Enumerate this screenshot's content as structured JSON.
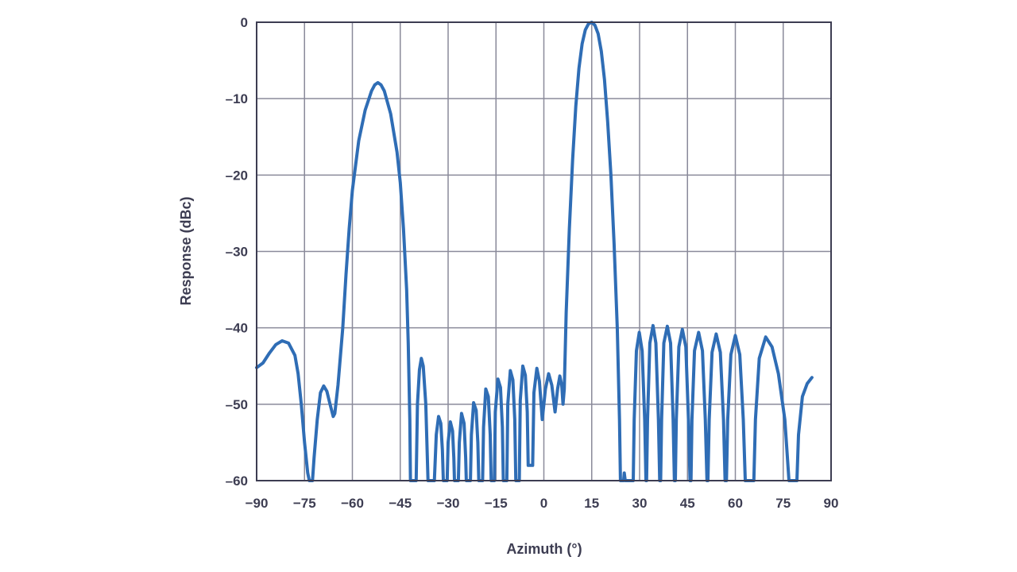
{
  "chart_data": {
    "type": "line",
    "title": "",
    "xlabel": "Azimuth (°)",
    "ylabel": "Response (dBc)",
    "xlim": [
      -90,
      90
    ],
    "ylim": [
      -60,
      0
    ],
    "grid": true,
    "x_ticks": [
      -90,
      -75,
      -60,
      -45,
      -30,
      -15,
      0,
      15,
      30,
      45,
      60,
      75,
      90
    ],
    "x_tick_labels": [
      "−90",
      "−75",
      "−60",
      "−45",
      "−30",
      "−15",
      "0",
      "15",
      "30",
      "45",
      "60",
      "75",
      "90"
    ],
    "y_ticks": [
      0,
      -10,
      -20,
      -30,
      -40,
      -50,
      -60
    ],
    "y_tick_labels": [
      "0",
      "–10",
      "–20",
      "–30",
      "–40",
      "–50",
      "–60"
    ],
    "line_color": "#2f6db5",
    "grid_color": "#8a8a9a",
    "series": [
      {
        "values": [
          [
            -90,
            -45.2
          ],
          [
            -88,
            -44.6
          ],
          [
            -86,
            -43.3
          ],
          [
            -84,
            -42.2
          ],
          [
            -82,
            -41.7
          ],
          [
            -80,
            -42.0
          ],
          [
            -78,
            -43.6
          ],
          [
            -77,
            -46.0
          ],
          [
            -76,
            -50.0
          ],
          [
            -75,
            -55.0
          ],
          [
            -74,
            -59.0
          ],
          [
            -73.5,
            -60
          ],
          [
            -72.5,
            -60
          ],
          [
            -72,
            -57.0
          ],
          [
            -71,
            -52.0
          ],
          [
            -70,
            -48.5
          ],
          [
            -69,
            -47.6
          ],
          [
            -68,
            -48.3
          ],
          [
            -67,
            -50.0
          ],
          [
            -66,
            -51.6
          ],
          [
            -65.5,
            -51.2
          ],
          [
            -64.5,
            -47.5
          ],
          [
            -63,
            -40.0
          ],
          [
            -62,
            -33.0
          ],
          [
            -61,
            -27.0
          ],
          [
            -60,
            -22.0
          ],
          [
            -58,
            -15.5
          ],
          [
            -56,
            -11.5
          ],
          [
            -54,
            -9.0
          ],
          [
            -53,
            -8.2
          ],
          [
            -52,
            -7.9
          ],
          [
            -51,
            -8.2
          ],
          [
            -50,
            -9.0
          ],
          [
            -48,
            -12.0
          ],
          [
            -46,
            -17.0
          ],
          [
            -45,
            -21.0
          ],
          [
            -44,
            -27.0
          ],
          [
            -43,
            -35.0
          ],
          [
            -42.5,
            -42.0
          ],
          [
            -42,
            -52.0
          ],
          [
            -41.8,
            -60
          ],
          [
            -40,
            -60
          ],
          [
            -39.6,
            -50.0
          ],
          [
            -39,
            -45.5
          ],
          [
            -38.4,
            -44.0
          ],
          [
            -37.8,
            -45.0
          ],
          [
            -37,
            -50.0
          ],
          [
            -36.3,
            -60
          ],
          [
            -34.3,
            -60
          ],
          [
            -33.7,
            -54.0
          ],
          [
            -33,
            -51.6
          ],
          [
            -32.3,
            -52.5
          ],
          [
            -31.8,
            -56.0
          ],
          [
            -31.5,
            -60
          ],
          [
            -30.3,
            -60
          ],
          [
            -30,
            -55.0
          ],
          [
            -29.3,
            -52.3
          ],
          [
            -28.6,
            -53.5
          ],
          [
            -28.2,
            -57.0
          ],
          [
            -28,
            -60
          ],
          [
            -26.8,
            -60
          ],
          [
            -26.5,
            -55.0
          ],
          [
            -25.8,
            -51.2
          ],
          [
            -25,
            -52.5
          ],
          [
            -24.5,
            -57.0
          ],
          [
            -24.3,
            -60
          ],
          [
            -23,
            -60
          ],
          [
            -22.7,
            -54.0
          ],
          [
            -22,
            -49.8
          ],
          [
            -21.2,
            -50.8
          ],
          [
            -20.7,
            -55.0
          ],
          [
            -20.4,
            -60
          ],
          [
            -19.2,
            -60
          ],
          [
            -18.9,
            -53.0
          ],
          [
            -18.2,
            -48.0
          ],
          [
            -17.4,
            -49.0
          ],
          [
            -16.8,
            -54.0
          ],
          [
            -16.5,
            -60
          ],
          [
            -15.5,
            -60
          ],
          [
            -15.2,
            -51.0
          ],
          [
            -14.4,
            -46.7
          ],
          [
            -13.6,
            -47.8
          ],
          [
            -13,
            -53.0
          ],
          [
            -12.7,
            -60
          ],
          [
            -11.6,
            -60
          ],
          [
            -11.3,
            -50.0
          ],
          [
            -10.5,
            -45.6
          ],
          [
            -9.7,
            -46.8
          ],
          [
            -9.1,
            -52.0
          ],
          [
            -8.8,
            -60
          ],
          [
            -7.7,
            -60
          ],
          [
            -7.4,
            -49.5
          ],
          [
            -6.6,
            -45.0
          ],
          [
            -5.8,
            -46.2
          ],
          [
            -5.2,
            -51.0
          ],
          [
            -4.9,
            -58.0
          ],
          [
            -3.5,
            -58.0
          ],
          [
            -3.1,
            -48.5
          ],
          [
            -2.2,
            -45.3
          ],
          [
            -1.4,
            -47.0
          ],
          [
            -0.5,
            -52.0
          ],
          [
            0.5,
            -48.0
          ],
          [
            1.5,
            -46.0
          ],
          [
            2.5,
            -47.5
          ],
          [
            3.5,
            -51.0
          ],
          [
            4.3,
            -48.0
          ],
          [
            5.0,
            -46.3
          ],
          [
            5.6,
            -47.5
          ],
          [
            6.0,
            -50.0
          ],
          [
            6.4,
            -48.0
          ],
          [
            7.0,
            -38.0
          ],
          [
            8.0,
            -27.0
          ],
          [
            9.0,
            -18.0
          ],
          [
            10.0,
            -11.0
          ],
          [
            11.0,
            -6.0
          ],
          [
            12.0,
            -2.8
          ],
          [
            13.0,
            -1.0
          ],
          [
            14.0,
            -0.2
          ],
          [
            15.0,
            0.0
          ],
          [
            16.0,
            -0.4
          ],
          [
            17.0,
            -1.5
          ],
          [
            18.0,
            -3.8
          ],
          [
            19.0,
            -7.5
          ],
          [
            20.0,
            -13.0
          ],
          [
            21.0,
            -20.0
          ],
          [
            22.0,
            -29.0
          ],
          [
            23.0,
            -40.0
          ],
          [
            23.7,
            -52.0
          ],
          [
            24.0,
            -60
          ],
          [
            25.0,
            -60
          ],
          [
            25.2,
            -59.0
          ],
          [
            25.5,
            -60
          ],
          [
            28.0,
            -60
          ],
          [
            28.3,
            -52.0
          ],
          [
            29.0,
            -43.0
          ],
          [
            29.9,
            -40.6
          ],
          [
            30.8,
            -43.0
          ],
          [
            31.6,
            -52.0
          ],
          [
            32.0,
            -60
          ],
          [
            32.2,
            -60
          ],
          [
            32.5,
            -52.0
          ],
          [
            33.2,
            -42.0
          ],
          [
            34.2,
            -39.7
          ],
          [
            35.1,
            -42.0
          ],
          [
            35.9,
            -52.0
          ],
          [
            36.3,
            -60
          ],
          [
            36.6,
            -60
          ],
          [
            36.9,
            -52.0
          ],
          [
            37.6,
            -42.0
          ],
          [
            38.7,
            -39.8
          ],
          [
            39.7,
            -42.0
          ],
          [
            40.5,
            -52.0
          ],
          [
            40.9,
            -60
          ],
          [
            41.2,
            -60
          ],
          [
            41.5,
            -52.0
          ],
          [
            42.3,
            -42.5
          ],
          [
            43.4,
            -40.2
          ],
          [
            44.5,
            -42.5
          ],
          [
            45.3,
            -52.0
          ],
          [
            45.8,
            -60
          ],
          [
            46.1,
            -60
          ],
          [
            46.4,
            -52.0
          ],
          [
            47.2,
            -43.0
          ],
          [
            48.5,
            -40.6
          ],
          [
            49.7,
            -43.0
          ],
          [
            50.6,
            -52.0
          ],
          [
            51.1,
            -60
          ],
          [
            51.4,
            -60
          ],
          [
            51.8,
            -52.0
          ],
          [
            52.7,
            -43.2
          ],
          [
            54.0,
            -40.8
          ],
          [
            55.3,
            -43.2
          ],
          [
            56.3,
            -52.0
          ],
          [
            56.8,
            -60
          ],
          [
            57.2,
            -60
          ],
          [
            57.6,
            -52.0
          ],
          [
            58.6,
            -43.5
          ],
          [
            60.0,
            -41.0
          ],
          [
            61.4,
            -43.5
          ],
          [
            62.5,
            -52.0
          ],
          [
            63.1,
            -60
          ],
          [
            65.8,
            -60
          ],
          [
            66.3,
            -52.0
          ],
          [
            67.5,
            -44.0
          ],
          [
            69.5,
            -41.2
          ],
          [
            71.5,
            -42.5
          ],
          [
            73.5,
            -46.0
          ],
          [
            75.5,
            -52.0
          ],
          [
            76.8,
            -60
          ],
          [
            79.3,
            -60
          ],
          [
            79.8,
            -54.0
          ],
          [
            81.0,
            -49.0
          ],
          [
            82.5,
            -47.3
          ],
          [
            84.0,
            -46.5
          ]
        ]
      }
    ]
  }
}
